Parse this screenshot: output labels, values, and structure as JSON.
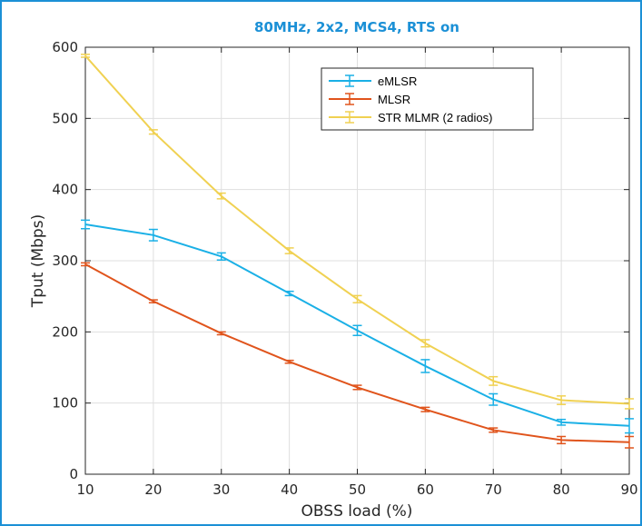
{
  "chart_data": {
    "type": "line",
    "title": "80MHz, 2x2, MCS4, RTS on",
    "xlabel": "OBSS load (%)",
    "ylabel": "Tput (Mbps)",
    "x": [
      10,
      20,
      30,
      40,
      50,
      60,
      70,
      80,
      90
    ],
    "xlim": [
      10,
      90
    ],
    "ylim": [
      0,
      600
    ],
    "xticks": [
      "10",
      "20",
      "30",
      "40",
      "50",
      "60",
      "70",
      "80",
      "90"
    ],
    "yticks": [
      "0",
      "100",
      "200",
      "300",
      "400",
      "500",
      "600"
    ],
    "grid": true,
    "legend_position": "top-right",
    "series": [
      {
        "name": "eMLSR",
        "color": "#1ab0e6",
        "values": [
          351,
          336,
          306,
          254,
          202,
          152,
          105,
          73,
          68
        ],
        "errors": [
          6,
          8,
          5,
          3,
          7,
          9,
          8,
          4,
          10
        ]
      },
      {
        "name": "MLSR",
        "color": "#e0541c",
        "values": [
          295,
          243,
          198,
          158,
          122,
          91,
          62,
          48,
          45
        ],
        "errors": [
          2,
          2,
          2,
          2,
          3,
          3,
          3,
          5,
          8
        ]
      },
      {
        "name": "STR MLMR (2 radios)",
        "color": "#f0d152",
        "values": [
          588,
          481,
          391,
          314,
          246,
          184,
          131,
          104,
          99
        ],
        "errors": [
          2,
          3,
          4,
          4,
          5,
          5,
          6,
          6,
          7
        ]
      }
    ]
  }
}
